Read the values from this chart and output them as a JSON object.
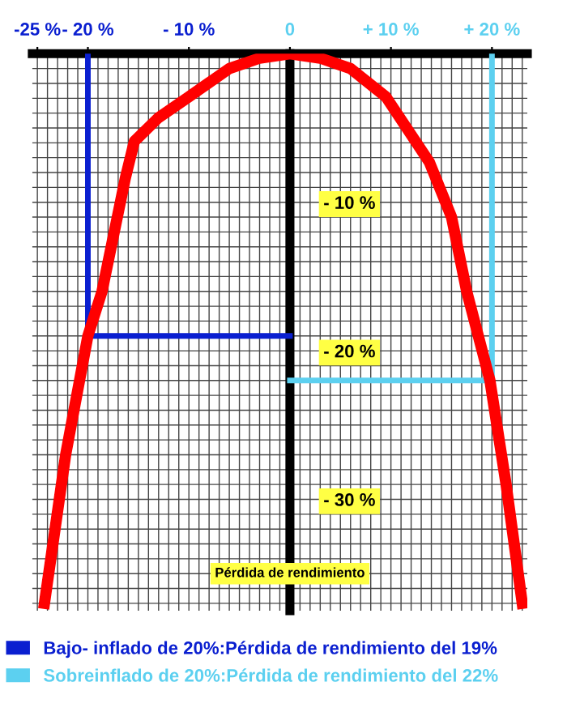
{
  "chart_data": {
    "type": "line",
    "ylabel": "Pérdida de rendimiento",
    "xlim": [
      -25.5,
      23.5
    ],
    "ylim": [
      -37.5,
      0
    ],
    "xticks": [
      {
        "value": -25,
        "label": "-25 %"
      },
      {
        "value": -20,
        "label": "- 20 %"
      },
      {
        "value": -10,
        "label": "- 10 %"
      },
      0,
      {
        "value": 10,
        "label": "+ 10 %"
      },
      {
        "value": 20,
        "label": "+ 20 %"
      }
    ],
    "yticks": [
      {
        "value": -10,
        "label": "- 10 %"
      },
      {
        "value": -20,
        "label": "- 20 %"
      },
      {
        "value": -30,
        "label": "- 30 %"
      }
    ],
    "grid": true,
    "legend": "bottom",
    "marker": "none",
    "line_style": "solid",
    "series": [
      {
        "color": "#ff0000",
        "x": [
          -24.3,
          -22.2,
          -20,
          -18.6,
          -16.3,
          -15.4,
          -13,
          -10,
          -6,
          -3,
          0,
          3,
          6,
          9.5,
          13.8,
          16,
          17.5,
          19.8,
          21.4,
          23
        ],
        "values": [
          -37,
          -27,
          -19,
          -16,
          -8.4,
          -5.9,
          -4.3,
          -2.9,
          -1,
          -0.3,
          0,
          -0.3,
          -1,
          -2.9,
          -7.3,
          -11,
          -16,
          -22,
          -29,
          -37
        ]
      },
      {
        "name": "Bajo- inflado de 20%:Pérdida de rendimiento del 19%",
        "color": "#0a1fd0",
        "x": [
          -20,
          -20,
          0
        ],
        "values": [
          0,
          -19,
          -19
        ]
      },
      {
        "name": "Sobreinflado de 20%:Pérdida de rendimiento del 22%",
        "color": "#5cd0f0",
        "x": [
          20,
          20,
          0
        ],
        "values": [
          0,
          -22,
          -22
        ]
      }
    ]
  }
}
